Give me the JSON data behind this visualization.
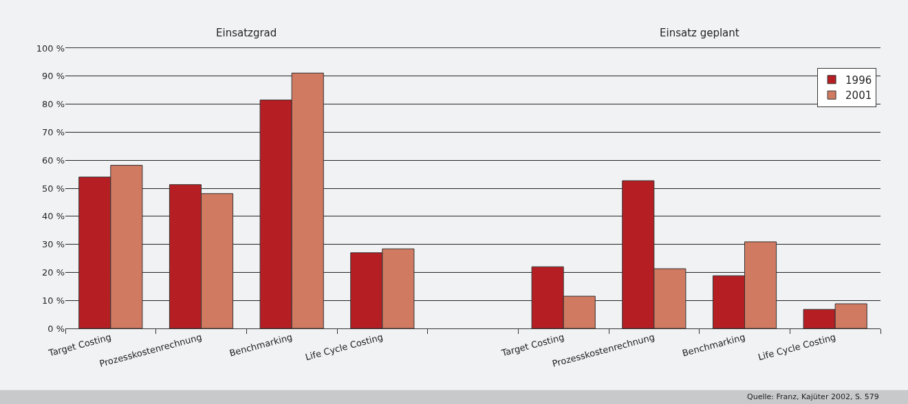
{
  "chart_data": {
    "type": "bar",
    "categories": [
      "Target Costing",
      "Prozesskostenrechnung",
      "Benchmarking",
      "Life Cycle Costing",
      null,
      "Target Costing",
      "Prozesskostenrechnung",
      "Benchmarking",
      "Life Cycle Costing"
    ],
    "series": [
      {
        "name": "1996",
        "color": "#b51f24",
        "values": [
          54,
          51.3,
          81.5,
          27,
          null,
          22,
          52.7,
          18.8,
          6.8
        ]
      },
      {
        "name": "2001",
        "color": "#d07a62",
        "values": [
          58.2,
          48.1,
          91.1,
          28.4,
          null,
          11.5,
          21.3,
          30.9,
          8.8
        ]
      }
    ],
    "ylim": [
      0,
      100
    ],
    "yticks": [
      {
        "value": 0,
        "label": "0 %"
      },
      {
        "value": 10,
        "label": "10 %"
      },
      {
        "value": 20,
        "label": "20 %"
      },
      {
        "value": 30,
        "label": "30 %"
      },
      {
        "value": 40,
        "label": "40 %"
      },
      {
        "value": 50,
        "label": "50 %"
      },
      {
        "value": 60,
        "label": "60 %"
      },
      {
        "value": 70,
        "label": "70 %"
      },
      {
        "value": 80,
        "label": "80 %"
      },
      {
        "value": 90,
        "label": "90 %"
      },
      {
        "value": 100,
        "label": "100 %"
      }
    ],
    "grid": "y",
    "legend": "top right",
    "annotations": [
      "Einsatzgrad",
      "Einsatz geplant",
      "Quelle: Franz, Kajüter 2002, S. 579"
    ]
  }
}
